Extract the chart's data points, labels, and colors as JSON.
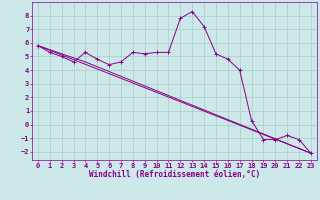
{
  "xlabel": "Windchill (Refroidissement éolien,°C)",
  "ylabel": "",
  "bg_color": "#cce8e8",
  "line_color": "#880088",
  "grid_color": "#aacccc",
  "xlim": [
    -0.5,
    23.5
  ],
  "ylim": [
    -2.6,
    9.0
  ],
  "xticks": [
    0,
    1,
    2,
    3,
    4,
    5,
    6,
    7,
    8,
    9,
    10,
    11,
    12,
    13,
    14,
    15,
    16,
    17,
    18,
    19,
    20,
    21,
    22,
    23
  ],
  "yticks": [
    -2,
    -1,
    0,
    1,
    2,
    3,
    4,
    5,
    6,
    7,
    8
  ],
  "line1_x": [
    0,
    1,
    2,
    3,
    4,
    5,
    6,
    7,
    8,
    9,
    10,
    11,
    12,
    13,
    14,
    15,
    16,
    17,
    18,
    19,
    20,
    21,
    22,
    23
  ],
  "line1_y": [
    5.8,
    5.3,
    5.0,
    4.6,
    5.3,
    4.8,
    4.4,
    4.6,
    5.3,
    5.2,
    5.3,
    5.3,
    7.8,
    8.3,
    7.2,
    5.2,
    4.8,
    4.0,
    0.3,
    -1.1,
    -1.1,
    -0.8,
    -1.1,
    -2.1
  ],
  "line2_x": [
    0,
    23
  ],
  "line2_y": [
    5.8,
    -2.1
  ],
  "line3_x": [
    0,
    4,
    23
  ],
  "line3_y": [
    5.8,
    4.6,
    -2.1
  ]
}
